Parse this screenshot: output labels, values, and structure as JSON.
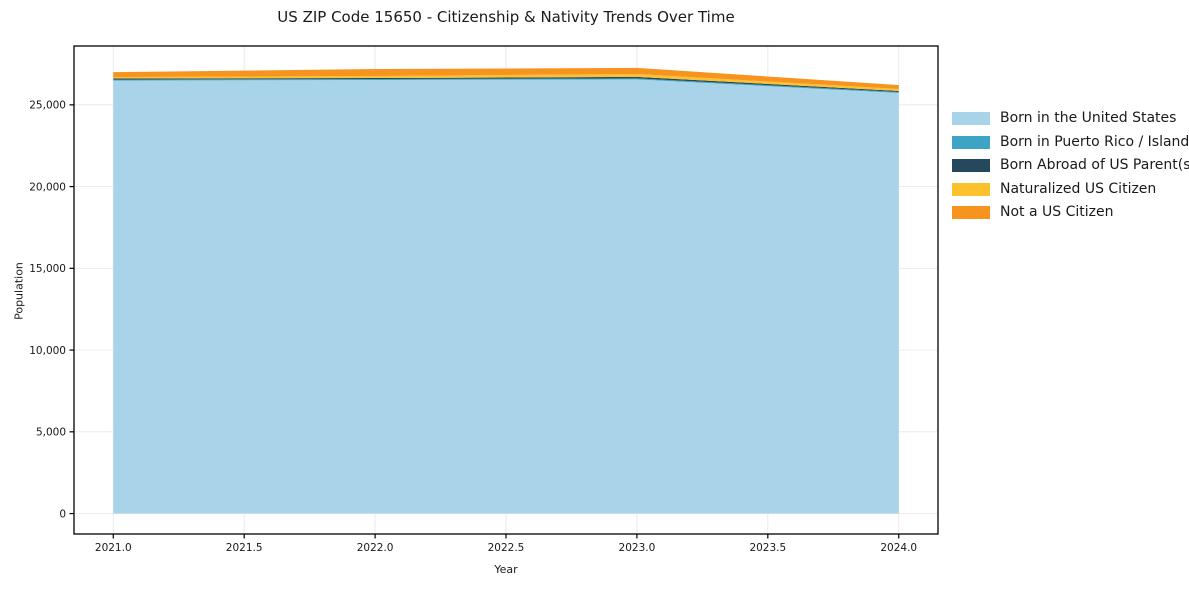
{
  "chart_data": {
    "type": "area",
    "stacked": true,
    "title": "US ZIP Code 15650 - Citizenship & Nativity Trends Over Time",
    "xlabel": "Year",
    "ylabel": "Population",
    "x": [
      2021,
      2022,
      2023,
      2024
    ],
    "series": [
      {
        "name": "Born in the United States",
        "color": "#A8D3E8",
        "values": [
          26490,
          26520,
          26560,
          25730
        ]
      },
      {
        "name": "Born in Puerto Rico / Islands",
        "color": "#3EA4C3",
        "values": [
          60,
          60,
          60,
          60
        ]
      },
      {
        "name": "Born Abroad of US Parent(s)",
        "color": "#26485C",
        "values": [
          60,
          60,
          90,
          60
        ]
      },
      {
        "name": "Naturalized US Citizen",
        "color": "#FCC22D",
        "values": [
          90,
          120,
          180,
          120
        ]
      },
      {
        "name": "Not a US Citizen",
        "color": "#F7941F",
        "values": [
          300,
          430,
          370,
          240
        ]
      }
    ],
    "xlim": [
      2020.85,
      2024.15
    ],
    "ylim": [
      -1250,
      28600
    ],
    "xticks": [
      2021.0,
      2021.5,
      2022.0,
      2022.5,
      2023.0,
      2023.5,
      2024.0
    ],
    "xtick_labels": [
      "2021.0",
      "2021.5",
      "2022.0",
      "2022.5",
      "2023.0",
      "2023.5",
      "2024.0"
    ],
    "yticks": [
      0,
      5000,
      10000,
      15000,
      20000,
      25000
    ],
    "ytick_labels": [
      "0",
      "5,000",
      "10,000",
      "15,000",
      "20,000",
      "25,000"
    ],
    "grid": true,
    "legend_position": "right-outside",
    "colors": {
      "grid": "#e8e8e8",
      "spine": "#000000",
      "text": "#1a1a1a",
      "background": "#ffffff"
    }
  }
}
